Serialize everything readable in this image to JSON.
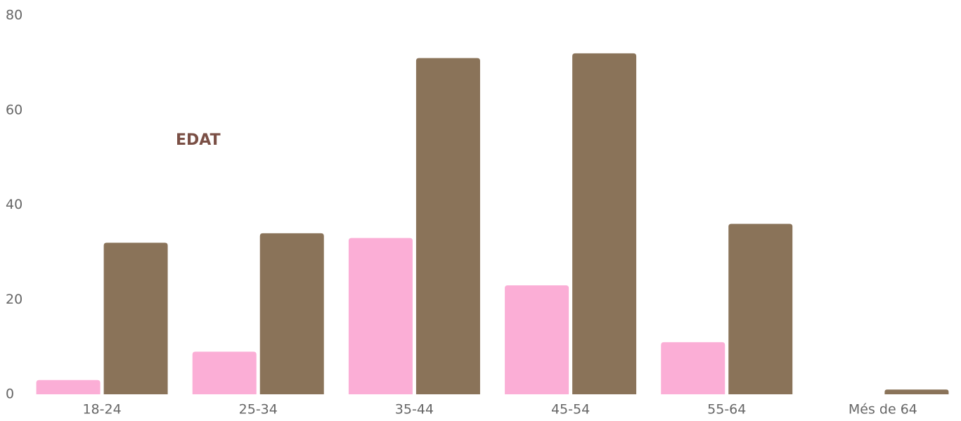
{
  "chart_data": {
    "type": "bar",
    "title": "EDAT",
    "categories": [
      "18-24",
      "25-34",
      "35-44",
      "45-54",
      "55-64",
      "Més de 64"
    ],
    "series": [
      {
        "color": "#fbaed6",
        "values": [
          3,
          9,
          33,
          23,
          11,
          0
        ]
      },
      {
        "color": "#8a7359",
        "values": [
          32,
          34,
          71,
          72,
          36,
          1
        ]
      }
    ],
    "ylim": [
      0,
      80
    ],
    "yticks": [
      0,
      20,
      40,
      60,
      80
    ],
    "grid": false
  }
}
